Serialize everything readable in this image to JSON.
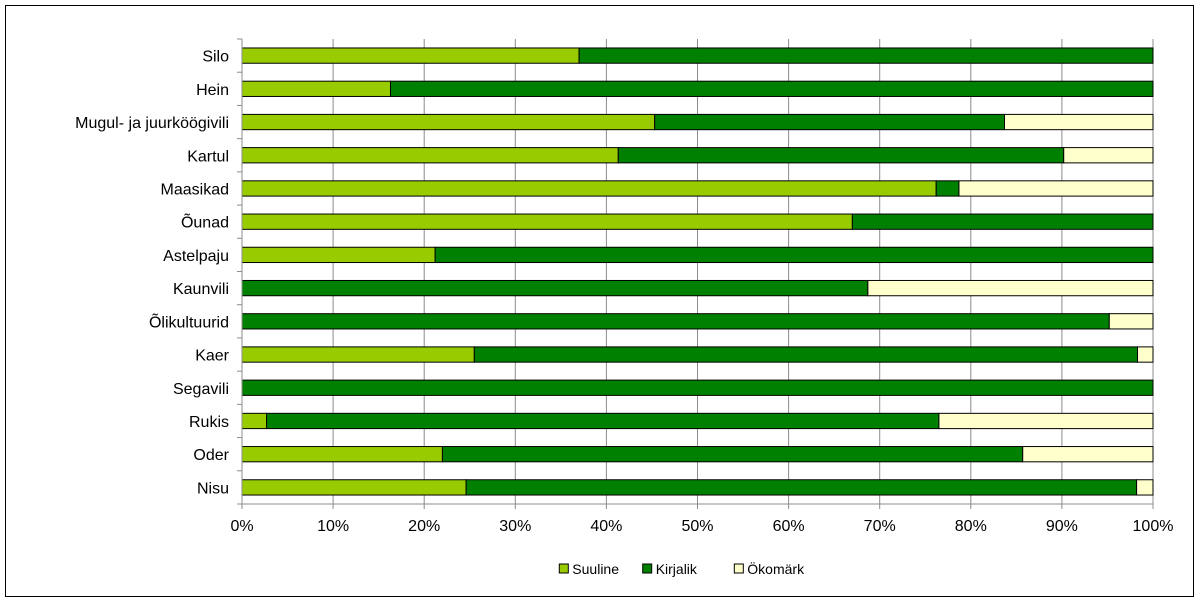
{
  "chart_data": {
    "type": "bar",
    "orientation": "horizontal",
    "stacked": "percent",
    "categories": [
      "Silo",
      "Hein",
      "Mugul- ja juurköögivili",
      "Kartul",
      "Maasikad",
      "Õunad",
      "Astelpaju",
      "Kaunvili",
      "Õlikultuurid",
      "Kaer",
      "Segavili",
      "Rukis",
      "Oder",
      "Nisu"
    ],
    "series": [
      {
        "name": "Suuline",
        "color": "#99cc00",
        "values": [
          37,
          16.3,
          45.3,
          41.3,
          76.2,
          67,
          21.2,
          0,
          0,
          25.5,
          0,
          2.7,
          22,
          24.6
        ]
      },
      {
        "name": "Kirjalik",
        "color": "#008000",
        "values": [
          63,
          83.7,
          38.4,
          48.9,
          2.5,
          33,
          78.8,
          68.7,
          95.2,
          72.8,
          100,
          73.8,
          63.7,
          73.6
        ]
      },
      {
        "name": "Ökomärk",
        "color": "#ffffcc",
        "values": [
          0,
          0,
          16.3,
          9.8,
          21.3,
          0,
          0,
          31.3,
          4.8,
          1.7,
          0,
          23.5,
          14.3,
          1.8
        ]
      }
    ],
    "x_ticks": [
      "0%",
      "10%",
      "20%",
      "30%",
      "40%",
      "50%",
      "60%",
      "70%",
      "80%",
      "90%",
      "100%"
    ],
    "xlim": [
      0,
      100
    ],
    "grid": "vertical",
    "legend": "bottom"
  }
}
